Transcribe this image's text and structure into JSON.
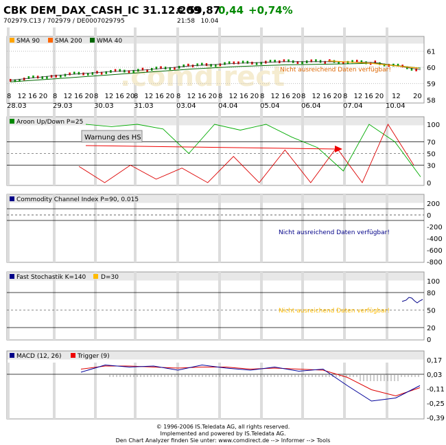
{
  "header": {
    "title": "CBK DEM_DAX_CASH_IC 31.12.209",
    "price": "€ 59,87",
    "change": "0,44",
    "change_pct": "+0,74%",
    "ids": "702979.C13  /  702979  /  DE0007029795",
    "time": "21:58",
    "date": "10.04",
    "colors": {
      "change": "#008800"
    }
  },
  "main_panel": {
    "legend": [
      {
        "label": "SMA 90",
        "color": "#ffa500"
      },
      {
        "label": "SMA 200",
        "color": "#ff6600"
      },
      {
        "label": "WMA 40",
        "color": "#006600"
      }
    ],
    "y_ticks": [
      "61",
      "60",
      "59",
      "58"
    ],
    "note": "Nicht ausreichend Daten verfügbar!",
    "watermark": ".comdirect",
    "x_hours": [
      "8",
      "12",
      "16",
      "20",
      "8",
      "12",
      "16",
      "20",
      "8",
      "12",
      "16",
      "20",
      "8",
      "12",
      "16",
      "20",
      "8",
      "12",
      "16",
      "20",
      "8",
      "12",
      "16",
      "20",
      "8",
      "12",
      "16",
      "20",
      "8",
      "12",
      "16",
      "20",
      "8",
      "12",
      "16",
      "20",
      "12",
      "20"
    ],
    "x_dates": [
      "28.03",
      "29.03",
      "30.03",
      "31.03",
      "03.04",
      "04.04",
      "05.04",
      "06.04",
      "07.04",
      "10.04"
    ]
  },
  "aroon_panel": {
    "title": "Aroon Up/Down P=25",
    "y_ticks": [
      "100",
      "70",
      "50",
      "30",
      "0"
    ],
    "annotation": "Warnung des HS",
    "colors": {
      "up": "#00aa00",
      "down": "#dd0000",
      "arrow": "#ee0000"
    }
  },
  "cci_panel": {
    "title": "Commodity Channel Index P=90, 0.015",
    "y_ticks": [
      "200",
      "0",
      "-200",
      "-400",
      "-600",
      "-800"
    ],
    "note": "Nicht ausreichend Daten verfügbar!"
  },
  "stoch_panel": {
    "title": "Fast Stochastik K=140",
    "title2": "D=30",
    "y_ticks": [
      "100",
      "80",
      "50",
      "20",
      "0"
    ],
    "note": "Nicht ausreichend Daten verfügbar!"
  },
  "macd_panel": {
    "title": "MACD (12, 26)",
    "title2": "Trigger (9)",
    "y_ticks": [
      "0,17",
      "0,03",
      "-0,11",
      "-0,25",
      "-0,39"
    ],
    "colors": {
      "macd": "#000099",
      "trigger": "#dd0000"
    }
  },
  "footer": {
    "line1": "© 1996-2006 IS.Teledata AG, all rights reserved.",
    "line2": "Implemented and powered by IS.Teledata AG.",
    "line3": "Den Chart Analyzer finden Sie unter: www.comdirect.de --> Informer --> Tools"
  },
  "chart_data": [
    {
      "type": "line",
      "title": "CBK DEM_DAX_CASH_IC 31.12.209",
      "ylim": [
        57.8,
        61.4
      ],
      "categories": [
        "28.03",
        "29.03",
        "30.03",
        "31.03",
        "03.04",
        "04.04",
        "05.04",
        "06.04",
        "07.04",
        "10.04"
      ],
      "series": [
        {
          "name": "Price",
          "values": [
            59.2,
            59.5,
            59.7,
            59.85,
            60.1,
            60.25,
            60.35,
            60.35,
            60.3,
            59.85
          ]
        },
        {
          "name": "WMA 40",
          "values": [
            59.1,
            59.3,
            59.5,
            59.7,
            59.9,
            60.05,
            60.15,
            60.2,
            60.25,
            59.95
          ]
        }
      ]
    },
    {
      "type": "line",
      "title": "Aroon Up/Down P=25",
      "ylim": [
        0,
        100
      ],
      "series": [
        {
          "name": "Aroon Up",
          "values": [
            100,
            96,
            100,
            92,
            50,
            100,
            90,
            100,
            78,
            60,
            20,
            100,
            70,
            10
          ]
        },
        {
          "name": "Aroon Down",
          "values": [
            28,
            0,
            30,
            6,
            25,
            0,
            45,
            0,
            56,
            0,
            60,
            0,
            100,
            30
          ]
        }
      ]
    },
    {
      "type": "line",
      "title": "MACD (12, 26)",
      "ylim": [
        -0.39,
        0.2
      ],
      "series": [
        {
          "name": "MACD (12, 26)",
          "values": [
            0.05,
            0.12,
            0.1,
            0.11,
            0.07,
            0.12,
            0.09,
            0.07,
            0.1,
            0.06,
            0.08,
            -0.08,
            -0.23,
            -0.2,
            -0.08
          ]
        },
        {
          "name": "Trigger (9)",
          "values": [
            0.08,
            0.11,
            0.11,
            0.1,
            0.09,
            0.1,
            0.1,
            0.08,
            0.09,
            0.08,
            0.07,
            0.0,
            -0.12,
            -0.18,
            -0.1
          ]
        }
      ]
    }
  ]
}
